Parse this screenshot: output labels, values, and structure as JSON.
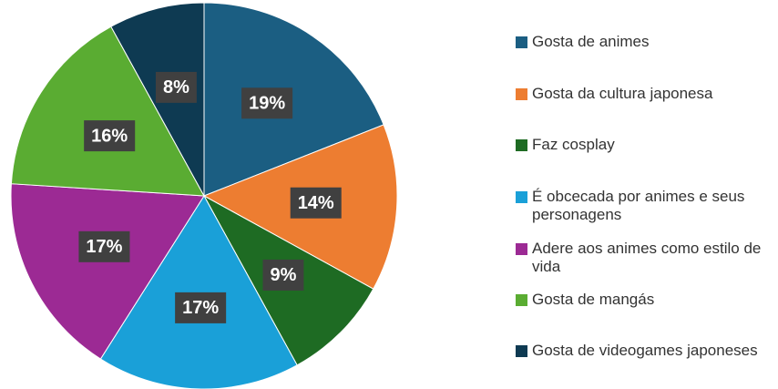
{
  "chart_data": {
    "type": "pie",
    "categories": [
      "Gosta de animes",
      "Gosta da cultura japonesa",
      "Faz cosplay",
      "É obcecada por animes e seus personagens",
      "Adere aos animes como estilo de vida",
      "Gosta de mangás",
      "Gosta de videogames japoneses"
    ],
    "values": [
      19,
      14,
      9,
      17,
      17,
      16,
      8
    ],
    "value_labels": [
      "19%",
      "14%",
      "9%",
      "17%",
      "17%",
      "16%",
      "8%"
    ],
    "colors": [
      "#1b5e82",
      "#ed7d31",
      "#1e6b23",
      "#1aa0d8",
      "#9c2a94",
      "#5aac32",
      "#0e3a52"
    ],
    "legend": "right"
  }
}
